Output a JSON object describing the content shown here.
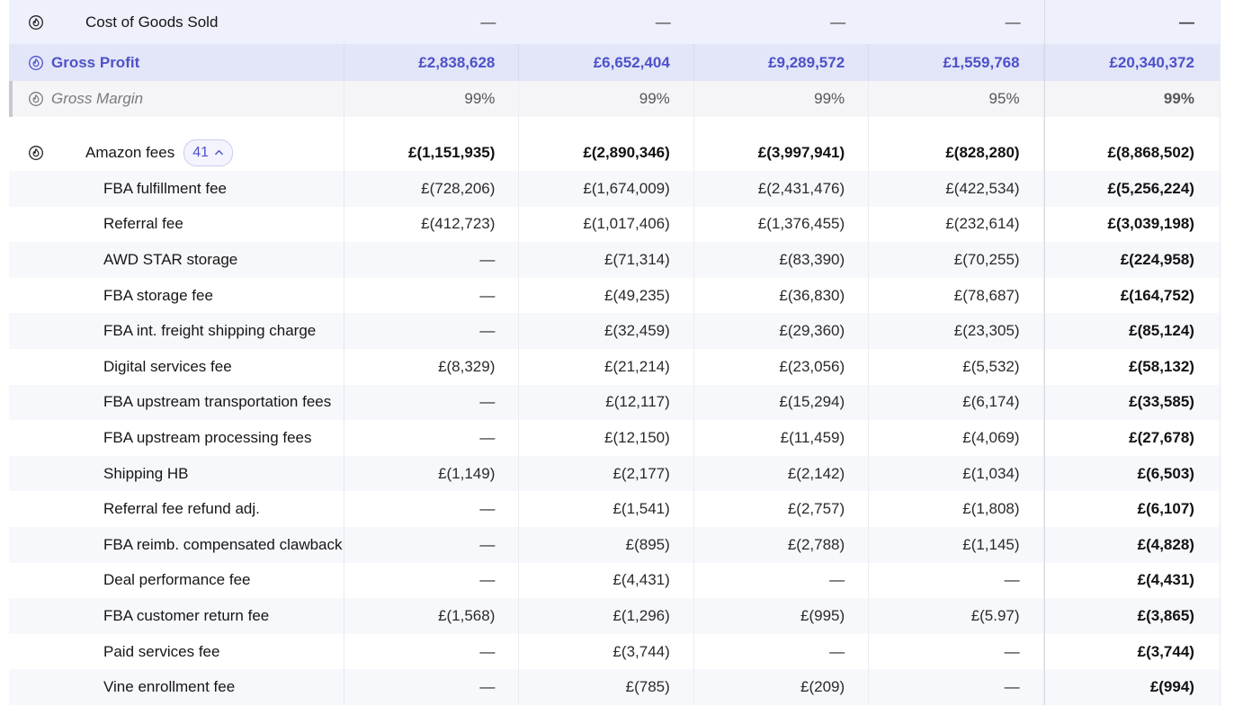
{
  "rows": {
    "cogs": {
      "label": "Cost of Goods Sold",
      "values": [
        "—",
        "—",
        "—",
        "—"
      ],
      "total": "—"
    },
    "gross_profit": {
      "label": "Gross Profit",
      "values": [
        "£2,838,628",
        "£6,652,404",
        "£9,289,572",
        "£1,559,768"
      ],
      "total": "£20,340,372"
    },
    "gross_margin": {
      "label": "Gross Margin",
      "values": [
        "99%",
        "99%",
        "99%",
        "95%"
      ],
      "total": "99%"
    },
    "amazon_fees": {
      "label": "Amazon fees",
      "badge_count": "41",
      "values": [
        "£(1,151,935)",
        "£(2,890,346)",
        "£(3,997,941)",
        "£(828,280)"
      ],
      "total": "£(8,868,502)"
    }
  },
  "fee_rows": [
    {
      "label": "FBA fulfillment fee",
      "values": [
        "£(728,206)",
        "£(1,674,009)",
        "£(2,431,476)",
        "£(422,534)"
      ],
      "total": "£(5,256,224)"
    },
    {
      "label": "Referral fee",
      "values": [
        "£(412,723)",
        "£(1,017,406)",
        "£(1,376,455)",
        "£(232,614)"
      ],
      "total": "£(3,039,198)"
    },
    {
      "label": "AWD STAR storage",
      "values": [
        "—",
        "£(71,314)",
        "£(83,390)",
        "£(70,255)"
      ],
      "total": "£(224,958)"
    },
    {
      "label": "FBA storage fee",
      "values": [
        "—",
        "£(49,235)",
        "£(36,830)",
        "£(78,687)"
      ],
      "total": "£(164,752)"
    },
    {
      "label": "FBA int. freight shipping charge",
      "values": [
        "—",
        "£(32,459)",
        "£(29,360)",
        "£(23,305)"
      ],
      "total": "£(85,124)"
    },
    {
      "label": "Digital services fee",
      "values": [
        "£(8,329)",
        "£(21,214)",
        "£(23,056)",
        "£(5,532)"
      ],
      "total": "£(58,132)"
    },
    {
      "label": "FBA upstream transportation fees",
      "values": [
        "—",
        "£(12,117)",
        "£(15,294)",
        "£(6,174)"
      ],
      "total": "£(33,585)"
    },
    {
      "label": "FBA upstream processing fees",
      "values": [
        "—",
        "£(12,150)",
        "£(11,459)",
        "£(4,069)"
      ],
      "total": "£(27,678)"
    },
    {
      "label": "Shipping HB",
      "values": [
        "£(1,149)",
        "£(2,177)",
        "£(2,142)",
        "£(1,034)"
      ],
      "total": "£(6,503)"
    },
    {
      "label": "Referral fee refund adj.",
      "values": [
        "—",
        "£(1,541)",
        "£(2,757)",
        "£(1,808)"
      ],
      "total": "£(6,107)"
    },
    {
      "label": "FBA reimb. compensated clawback",
      "values": [
        "—",
        "£(895)",
        "£(2,788)",
        "£(1,145)"
      ],
      "total": "£(4,828)"
    },
    {
      "label": "Deal performance fee",
      "values": [
        "—",
        "£(4,431)",
        "—",
        "—"
      ],
      "total": "£(4,431)"
    },
    {
      "label": "FBA customer return fee",
      "values": [
        "£(1,568)",
        "£(1,296)",
        "£(995)",
        "£(5.97)"
      ],
      "total": "£(3,865)"
    },
    {
      "label": "Paid services fee",
      "values": [
        "—",
        "£(3,744)",
        "—",
        "—"
      ],
      "total": "£(3,744)"
    },
    {
      "label": "Vine enrollment fee",
      "values": [
        "—",
        "£(785)",
        "£(209)",
        "—"
      ],
      "total": "£(994)"
    }
  ],
  "icons": {
    "row_icon": "fire-icon",
    "badge_icon": "chevron-up-icon"
  },
  "colors": {
    "accent": "#4d52c9",
    "highlight_row": "#e3e6f8"
  }
}
